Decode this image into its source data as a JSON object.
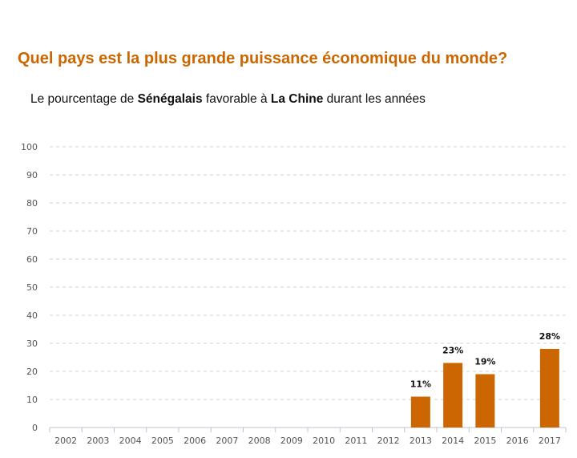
{
  "chart_data": {
    "type": "bar",
    "title": "Quel pays est la plus grande puissance économique du monde?",
    "subtitle": {
      "parts": [
        "Le pourcentage de ",
        "Sénégalais",
        " favorable à ",
        "La Chine",
        " durant les années"
      ]
    },
    "categories": [
      "2002",
      "2003",
      "2004",
      "2005",
      "2006",
      "2007",
      "2008",
      "2009",
      "2010",
      "2011",
      "2012",
      "2013",
      "2014",
      "2015",
      "2016",
      "2017"
    ],
    "values": [
      null,
      null,
      null,
      null,
      null,
      null,
      null,
      null,
      null,
      null,
      null,
      11,
      23,
      19,
      null,
      28
    ],
    "data_labels": [
      "",
      "",
      "",
      "",
      "",
      "",
      "",
      "",
      "",
      "",
      "",
      "11%",
      "23%",
      "19%",
      "",
      "28%"
    ],
    "ylim": [
      0,
      100
    ],
    "yticks": [
      0,
      10,
      20,
      30,
      40,
      50,
      60,
      70,
      80,
      90,
      100
    ],
    "grid": true,
    "colors": {
      "bar": "#cc6600",
      "title": "#cc6600",
      "grid": "#d0d0d0",
      "axis": "#b8c4d0"
    }
  }
}
